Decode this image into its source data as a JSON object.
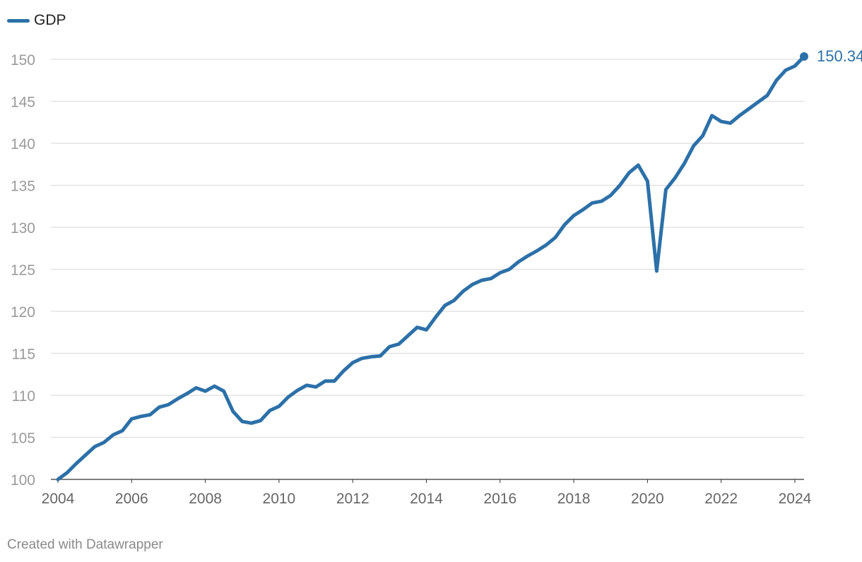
{
  "legend": {
    "label": "GDP"
  },
  "credit": "Created with Datawrapper",
  "colors": {
    "series": "#2c70a8",
    "grid": "#dedede",
    "axis": "#333333",
    "ytick": "#9a9a9a",
    "xtick": "#666666"
  },
  "chart_data": {
    "type": "line",
    "title": "",
    "xlabel": "",
    "ylabel": "",
    "xlim": [
      2004,
      2024.25
    ],
    "ylim": [
      100,
      150
    ],
    "yticks": [
      100,
      105,
      110,
      115,
      120,
      125,
      130,
      135,
      140,
      145,
      150
    ],
    "xticks": [
      2004,
      2006,
      2008,
      2010,
      2012,
      2014,
      2016,
      2018,
      2020,
      2022,
      2024
    ],
    "grid": "horizontal",
    "legend_position": "top-left",
    "last_value_label": "150.34",
    "series": [
      {
        "name": "GDP",
        "x": [
          2004.0,
          2004.25,
          2004.5,
          2004.75,
          2005.0,
          2005.25,
          2005.5,
          2005.75,
          2006.0,
          2006.25,
          2006.5,
          2006.75,
          2007.0,
          2007.25,
          2007.5,
          2007.75,
          2008.0,
          2008.25,
          2008.5,
          2008.75,
          2009.0,
          2009.25,
          2009.5,
          2009.75,
          2010.0,
          2010.25,
          2010.5,
          2010.75,
          2011.0,
          2011.25,
          2011.5,
          2011.75,
          2012.0,
          2012.25,
          2012.5,
          2012.75,
          2013.0,
          2013.25,
          2013.5,
          2013.75,
          2014.0,
          2014.25,
          2014.5,
          2014.75,
          2015.0,
          2015.25,
          2015.5,
          2015.75,
          2016.0,
          2016.25,
          2016.5,
          2016.75,
          2017.0,
          2017.25,
          2017.5,
          2017.75,
          2018.0,
          2018.25,
          2018.5,
          2018.75,
          2019.0,
          2019.25,
          2019.5,
          2019.75,
          2020.0,
          2020.25,
          2020.5,
          2020.75,
          2021.0,
          2021.25,
          2021.5,
          2021.75,
          2022.0,
          2022.25,
          2022.5,
          2022.75,
          2023.0,
          2023.25,
          2023.5,
          2023.75,
          2024.0,
          2024.25
        ],
        "values": [
          100.0,
          100.8,
          101.9,
          102.9,
          103.9,
          104.4,
          105.3,
          105.8,
          107.2,
          107.5,
          107.7,
          108.6,
          108.9,
          109.6,
          110.2,
          110.9,
          110.5,
          111.1,
          110.5,
          108.1,
          106.9,
          106.7,
          107.0,
          108.2,
          108.7,
          109.8,
          110.6,
          111.2,
          111.0,
          111.7,
          111.7,
          112.9,
          113.9,
          114.4,
          114.6,
          114.7,
          115.8,
          116.1,
          117.1,
          118.1,
          117.8,
          119.3,
          120.7,
          121.3,
          122.4,
          123.2,
          123.7,
          123.9,
          124.6,
          125.0,
          125.9,
          126.6,
          127.2,
          127.9,
          128.8,
          130.3,
          131.4,
          132.1,
          132.9,
          133.1,
          133.8,
          135.0,
          136.5,
          137.4,
          135.5,
          124.8,
          134.5,
          135.9,
          137.6,
          139.7,
          140.9,
          143.3,
          142.6,
          142.4,
          143.3,
          144.1,
          144.9,
          145.7,
          147.5,
          148.7,
          149.2,
          150.34
        ]
      }
    ]
  }
}
